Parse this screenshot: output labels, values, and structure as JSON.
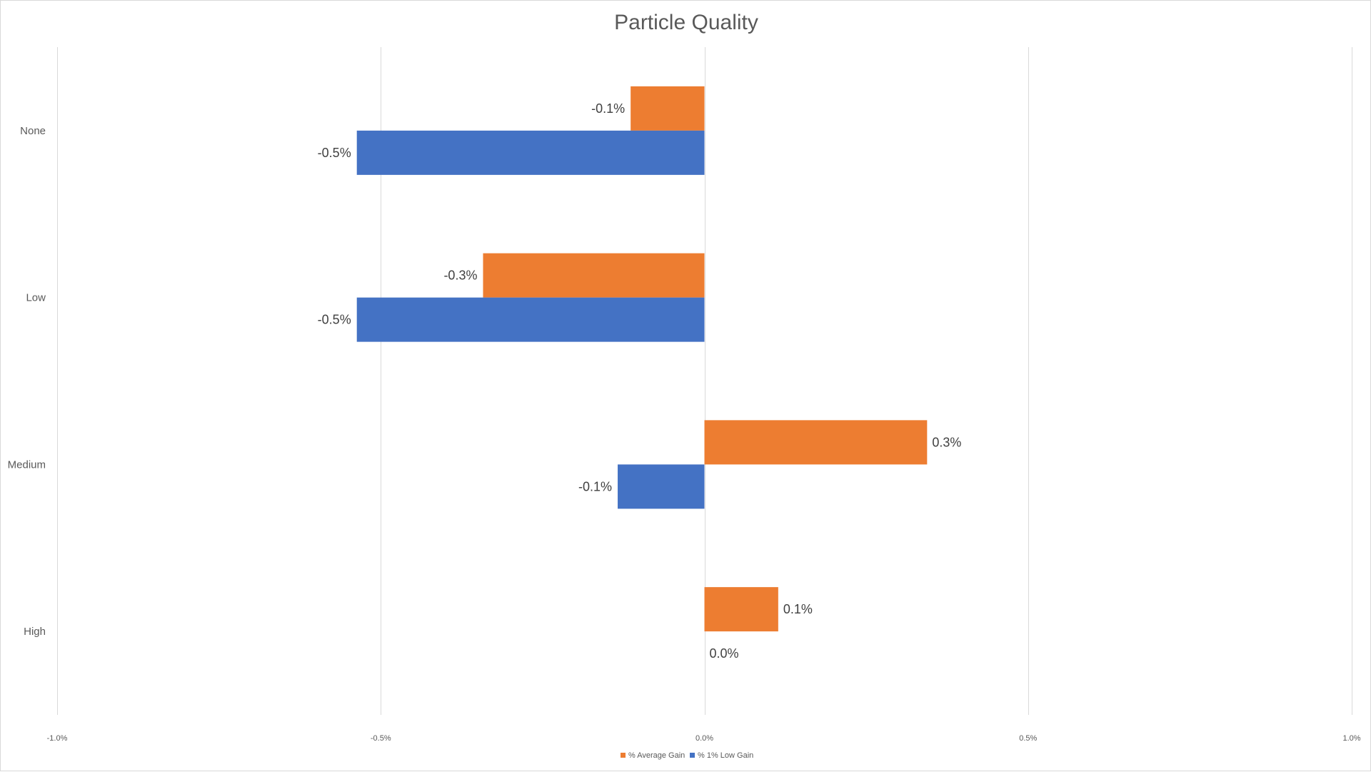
{
  "chart_data": {
    "type": "bar",
    "orientation": "horizontal",
    "title": "Particle Quality",
    "xlabel": "",
    "ylabel": "",
    "categories": [
      "None",
      "Low",
      "Medium",
      "High"
    ],
    "series": [
      {
        "name": "% Average Gain",
        "color": "#ED7D31",
        "values": [
          -0.00114,
          -0.00342,
          0.00344,
          0.00114
        ],
        "labels": [
          "-0.1%",
          "-0.3%",
          "0.3%",
          "0.1%"
        ]
      },
      {
        "name": "% 1% Low Gain",
        "color": "#4472C4",
        "values": [
          -0.00537,
          -0.00537,
          -0.00134,
          0.0
        ],
        "labels": [
          "-0.5%",
          "-0.5%",
          "-0.1%",
          "0.0%"
        ]
      }
    ],
    "xlim": [
      -0.01,
      0.01
    ],
    "x_ticks": [
      -0.01,
      -0.005,
      0.0,
      0.005,
      0.01
    ],
    "x_tick_labels": [
      "-1.0%",
      "-0.5%",
      "0.0%",
      "0.5%",
      "1.0%"
    ],
    "grid": true,
    "legend_position": "bottom",
    "colors": {
      "gridline": "#D9D9D9",
      "text": "#595959",
      "data_label": "#404040"
    }
  }
}
